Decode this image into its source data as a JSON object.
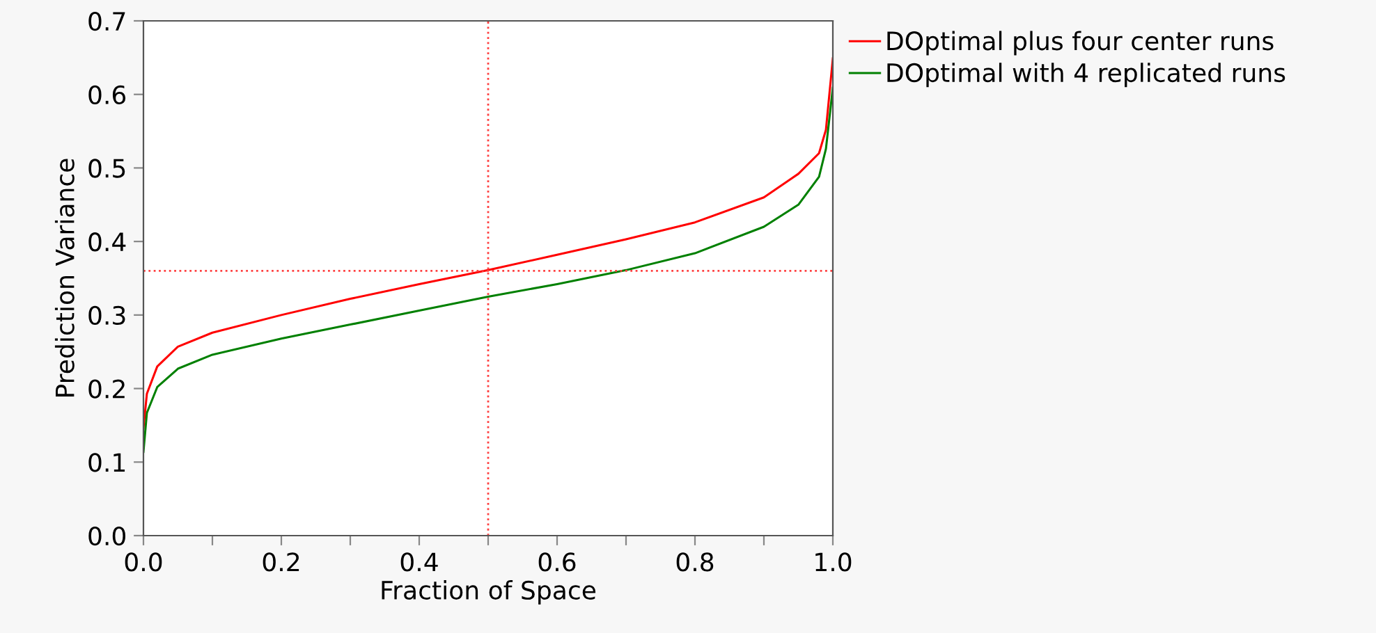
{
  "chart_data": {
    "type": "line",
    "xlabel": "Fraction of Space",
    "ylabel": "Prediction Variance",
    "xlim": [
      0,
      1
    ],
    "ylim": [
      0,
      0.7
    ],
    "xticks": [
      {
        "value": 0.0,
        "label": "0.0"
      },
      {
        "value": 0.1,
        "label": null
      },
      {
        "value": 0.2,
        "label": "0.2"
      },
      {
        "value": 0.3,
        "label": null
      },
      {
        "value": 0.4,
        "label": "0.4"
      },
      {
        "value": 0.5,
        "label": null
      },
      {
        "value": 0.6,
        "label": "0.6"
      },
      {
        "value": 0.7,
        "label": null
      },
      {
        "value": 0.8,
        "label": "0.8"
      },
      {
        "value": 0.9,
        "label": null
      },
      {
        "value": 1.0,
        "label": "1.0"
      }
    ],
    "yticks": [
      {
        "value": 0.0,
        "label": "0.0"
      },
      0.1,
      0.2,
      0.3,
      0.4,
      0.5,
      0.6,
      0.7
    ],
    "grid": false,
    "legend": "top right",
    "marker": "none",
    "line_style": "solid",
    "x": [
      0,
      0.005,
      0.02,
      0.05,
      0.1,
      0.2,
      0.3,
      0.4,
      0.5,
      0.6,
      0.7,
      0.8,
      0.9,
      0.95,
      0.98,
      0.99,
      1.0
    ],
    "series": [
      {
        "name": "DOptimal plus four center runs",
        "color": "#ff0000",
        "values": [
          0.146,
          0.193,
          0.23,
          0.257,
          0.276,
          0.3,
          0.322,
          0.342,
          0.361,
          0.382,
          0.403,
          0.426,
          0.46,
          0.492,
          0.52,
          0.552,
          0.649
        ]
      },
      {
        "name": "DOptimal with 4 replicated runs",
        "color": "#008000",
        "values": [
          0.114,
          0.167,
          0.202,
          0.227,
          0.246,
          0.268,
          0.287,
          0.306,
          0.325,
          0.342,
          0.361,
          0.384,
          0.42,
          0.45,
          0.488,
          0.526,
          0.609
        ]
      }
    ],
    "ref_lines": [
      {
        "axis": "x",
        "value": 0.5,
        "color": "#ff4040",
        "line_style": "dotted"
      },
      {
        "axis": "y",
        "value": 0.36,
        "color": "#ff4040",
        "line_style": "dotted"
      }
    ]
  }
}
